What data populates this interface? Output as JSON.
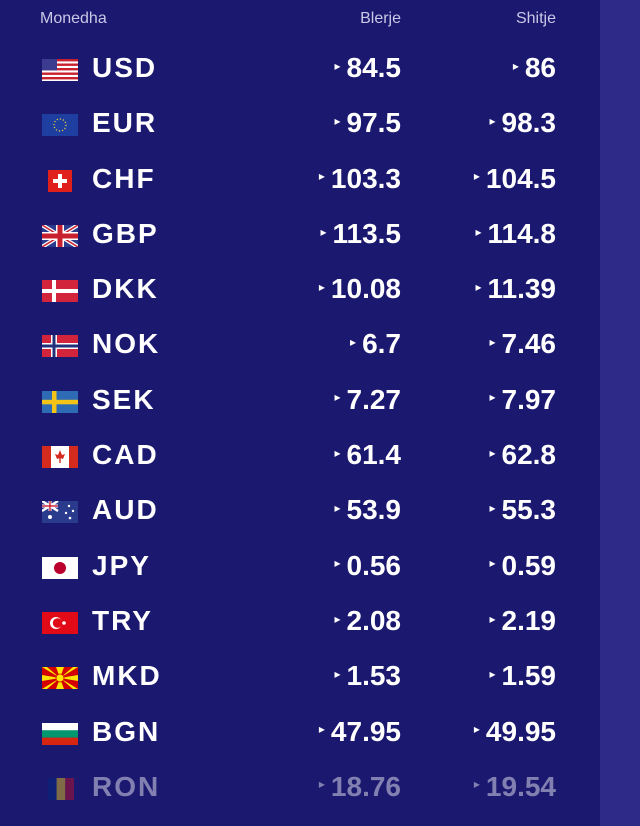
{
  "header": {
    "currency": "Monedha",
    "buy": "Blerje",
    "sell": "Shitje"
  },
  "arrow_glyph": "▸",
  "rows": [
    {
      "code": "USD",
      "buy": "84.5",
      "sell": "86",
      "flag": "us-flag"
    },
    {
      "code": "EUR",
      "buy": "97.5",
      "sell": "98.3",
      "flag": "eu-flag"
    },
    {
      "code": "CHF",
      "buy": "103.3",
      "sell": "104.5",
      "flag": "ch-flag"
    },
    {
      "code": "GBP",
      "buy": "113.5",
      "sell": "114.8",
      "flag": "gb-flag"
    },
    {
      "code": "DKK",
      "buy": "10.08",
      "sell": "11.39",
      "flag": "dk-flag"
    },
    {
      "code": "NOK",
      "buy": "6.7",
      "sell": "7.46",
      "flag": "no-flag"
    },
    {
      "code": "SEK",
      "buy": "7.27",
      "sell": "7.97",
      "flag": "se-flag"
    },
    {
      "code": "CAD",
      "buy": "61.4",
      "sell": "62.8",
      "flag": "ca-flag"
    },
    {
      "code": "AUD",
      "buy": "53.9",
      "sell": "55.3",
      "flag": "au-flag"
    },
    {
      "code": "JPY",
      "buy": "0.56",
      "sell": "0.59",
      "flag": "jp-flag"
    },
    {
      "code": "TRY",
      "buy": "2.08",
      "sell": "2.19",
      "flag": "tr-flag"
    },
    {
      "code": "MKD",
      "buy": "1.53",
      "sell": "1.59",
      "flag": "mk-flag"
    },
    {
      "code": "BGN",
      "buy": "47.95",
      "sell": "49.95",
      "flag": "bg-flag"
    },
    {
      "code": "RON",
      "buy": "18.76",
      "sell": "19.54",
      "flag": "ro-flag"
    }
  ],
  "colors": {
    "background": "#1b1870",
    "side": "#2d2a88",
    "header_text": "#c9c8e6"
  }
}
